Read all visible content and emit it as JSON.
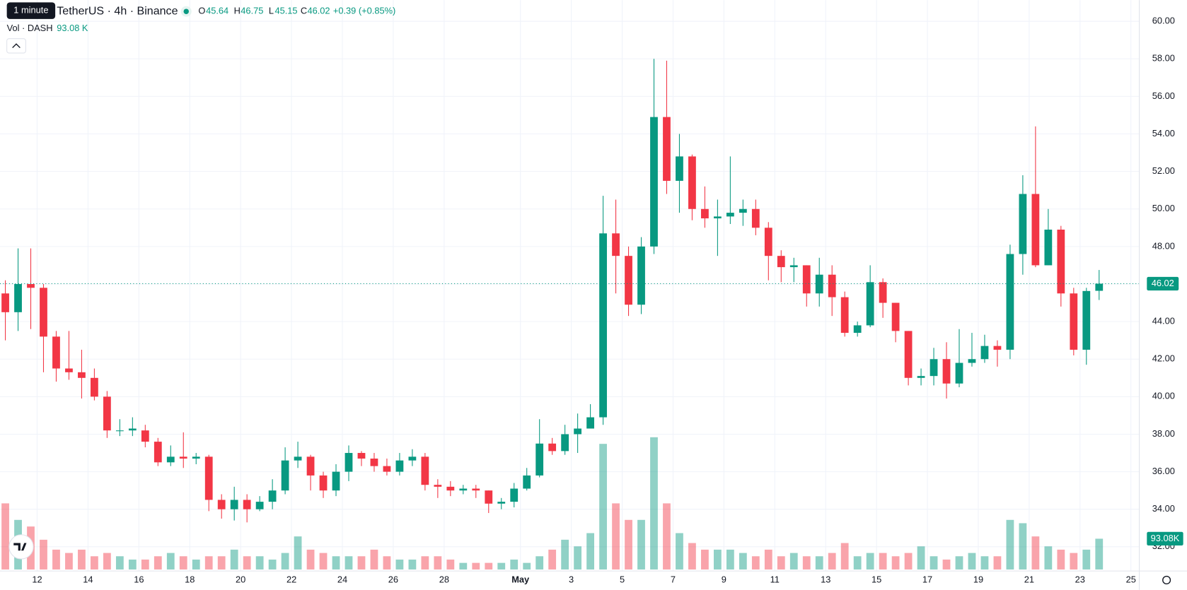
{
  "chart_data": {
    "type": "candlestick",
    "title": "TetherUS · 4h · Binance",
    "tooltip": "1 minute",
    "ohlc_labels": [
      "O",
      "H",
      "L",
      "C"
    ],
    "change": "+0.39 (+0.85%)",
    "volume_title": "Vol · DASH",
    "volume_header": "93.08 K",
    "x": [
      10.75,
      11.25,
      11.75,
      12.25,
      12.75,
      13.25,
      13.75,
      14.25,
      14.75,
      15.25,
      15.75,
      16.25,
      16.75,
      17.25,
      17.75,
      18.25,
      18.75,
      19.25,
      19.75,
      20.25,
      20.75,
      21.25,
      21.75,
      22.25,
      22.75,
      23.25,
      23.75,
      24.25,
      24.75,
      25.25,
      25.75,
      26.25,
      26.75,
      27.25,
      27.75,
      28.25,
      28.75,
      29.25,
      29.75,
      30.25,
      30.75,
      31.25,
      31.75,
      32.25,
      32.75,
      33.25,
      33.75,
      34.25,
      34.75,
      35.25,
      35.75,
      36.25,
      36.75,
      37.25,
      37.75,
      38.25,
      38.75,
      39.25,
      39.75,
      40.25,
      40.75,
      41.25,
      41.75,
      42.25,
      42.75,
      43.25,
      43.75,
      44.25,
      44.75,
      45.25,
      45.75,
      46.25,
      46.75,
      47.25,
      47.75,
      48.25,
      48.75,
      49.25,
      49.75,
      50.25,
      50.75,
      51.25,
      51.75,
      52.25,
      52.75,
      53.25,
      53.75
    ],
    "open": [
      45.5,
      44.5,
      46.0,
      45.8,
      43.2,
      41.5,
      41.3,
      41.0,
      40.0,
      38.2,
      38.2,
      38.2,
      37.6,
      36.5,
      36.8,
      36.7,
      36.8,
      34.5,
      34.0,
      34.5,
      34.0,
      34.4,
      35.0,
      36.6,
      36.8,
      35.8,
      35.0,
      36.0,
      37.0,
      36.7,
      36.3,
      36.0,
      36.6,
      36.8,
      35.3,
      35.2,
      35.0,
      35.1,
      35.0,
      34.3,
      34.4,
      35.1,
      35.8,
      37.5,
      37.1,
      38.0,
      38.3,
      38.9,
      48.7,
      47.5,
      44.9,
      48.0,
      54.9,
      51.5,
      52.8,
      50.0,
      49.5,
      49.6,
      49.8,
      50.0,
      49.0,
      47.5,
      46.9,
      47.0,
      45.5,
      46.5,
      45.3,
      43.4,
      43.8,
      46.1,
      45.0,
      43.5,
      41.0,
      41.1,
      42.0,
      40.7,
      41.8,
      42.0,
      42.7,
      42.5,
      47.6,
      50.8,
      47.0,
      48.9,
      45.5,
      42.5,
      45.64
    ],
    "high": [
      46.2,
      47.9,
      47.9,
      46.0,
      43.5,
      43.5,
      42.5,
      41.5,
      40.3,
      38.8,
      38.9,
      38.5,
      37.8,
      37.4,
      38.1,
      37.0,
      36.9,
      34.8,
      35.2,
      34.8,
      34.7,
      35.6,
      37.3,
      37.6,
      36.9,
      36.0,
      36.4,
      37.4,
      37.1,
      37.0,
      36.7,
      37.0,
      37.2,
      37.0,
      35.6,
      35.5,
      35.3,
      35.3,
      35.0,
      34.6,
      35.4,
      36.2,
      38.8,
      37.8,
      38.5,
      39.1,
      39.6,
      50.7,
      50.5,
      48.0,
      48.5,
      58.0,
      57.9,
      54.0,
      52.9,
      51.2,
      50.5,
      52.8,
      50.5,
      50.5,
      49.3,
      47.8,
      47.4,
      47.0,
      47.4,
      47.0,
      45.6,
      44.0,
      47.0,
      46.3,
      45.0,
      43.5,
      41.5,
      42.6,
      42.9,
      43.6,
      43.4,
      43.3,
      43.0,
      48.1,
      51.8,
      54.4,
      50.0,
      49.1,
      45.8,
      45.8,
      46.75
    ],
    "low": [
      43.0,
      43.5,
      43.6,
      41.3,
      40.8,
      40.9,
      39.9,
      39.8,
      37.8,
      37.9,
      37.9,
      37.3,
      36.3,
      36.3,
      36.2,
      36.4,
      33.9,
      33.5,
      33.4,
      33.3,
      33.9,
      34.0,
      34.8,
      36.2,
      35.0,
      34.6,
      34.7,
      35.5,
      36.3,
      36.0,
      35.8,
      35.8,
      36.3,
      35.0,
      34.6,
      34.7,
      34.8,
      34.6,
      33.8,
      34.0,
      34.1,
      35.0,
      35.7,
      36.9,
      36.9,
      37.0,
      38.3,
      38.5,
      45.5,
      44.3,
      44.4,
      47.6,
      50.8,
      49.8,
      49.4,
      49.0,
      47.5,
      49.2,
      49.1,
      48.6,
      46.2,
      46.1,
      46.1,
      44.8,
      44.8,
      44.3,
      43.2,
      43.2,
      43.7,
      44.2,
      42.9,
      40.6,
      40.6,
      40.6,
      39.9,
      40.5,
      41.6,
      41.8,
      41.6,
      42.0,
      46.5,
      46.9,
      47.0,
      44.8,
      42.2,
      41.7,
      45.15
    ],
    "close": [
      44.5,
      46.0,
      45.8,
      43.2,
      41.5,
      41.3,
      41.0,
      40.0,
      38.2,
      38.2,
      38.3,
      37.6,
      36.5,
      36.8,
      36.7,
      36.8,
      34.5,
      34.0,
      34.5,
      34.0,
      34.4,
      35.0,
      36.6,
      36.8,
      35.8,
      35.0,
      36.0,
      37.0,
      36.7,
      36.3,
      36.0,
      36.6,
      36.8,
      35.3,
      35.2,
      35.0,
      35.1,
      35.0,
      34.3,
      34.4,
      35.1,
      35.8,
      37.5,
      37.1,
      38.0,
      38.3,
      38.9,
      48.7,
      47.5,
      44.9,
      48.0,
      54.9,
      51.5,
      52.8,
      50.0,
      49.5,
      49.6,
      49.8,
      50.0,
      49.0,
      47.5,
      46.9,
      47.0,
      45.5,
      46.5,
      45.3,
      43.4,
      43.8,
      46.1,
      45.0,
      43.5,
      41.0,
      41.1,
      42.0,
      40.7,
      41.8,
      42.0,
      42.7,
      42.5,
      47.6,
      50.8,
      47.0,
      48.9,
      45.5,
      42.5,
      45.63,
      46.02
    ],
    "volume": [
      200000,
      150000,
      130000,
      90000,
      60000,
      50000,
      60000,
      40000,
      50000,
      40000,
      30000,
      30000,
      40000,
      50000,
      40000,
      30000,
      40000,
      40000,
      60000,
      40000,
      40000,
      30000,
      50000,
      100000,
      60000,
      50000,
      40000,
      40000,
      40000,
      60000,
      40000,
      30000,
      30000,
      40000,
      40000,
      30000,
      20000,
      20000,
      20000,
      20000,
      30000,
      20000,
      40000,
      60000,
      90000,
      70000,
      110000,
      380000,
      200000,
      150000,
      150000,
      400000,
      200000,
      110000,
      80000,
      60000,
      60000,
      60000,
      50000,
      40000,
      60000,
      40000,
      50000,
      40000,
      40000,
      50000,
      80000,
      40000,
      50000,
      50000,
      40000,
      50000,
      70000,
      40000,
      30000,
      40000,
      50000,
      40000,
      40000,
      150000,
      140000,
      100000,
      70000,
      60000,
      50000,
      60000,
      93080
    ],
    "volume_last_label": "93.08K",
    "volume_lim": [
      0,
      430000
    ],
    "up_color": "#089981",
    "down_color": "#f23645",
    "xlim": [
      10.54,
      55.33
    ],
    "ylim": [
      30.71,
      61.13
    ],
    "xticks": [
      12,
      14,
      16,
      18,
      20,
      22,
      24,
      26,
      28,
      {
        "value": 31,
        "label": "May"
      },
      {
        "value": 33,
        "label": "3"
      },
      {
        "value": 35,
        "label": "5"
      },
      {
        "value": 37,
        "label": "7"
      },
      {
        "value": 39,
        "label": "9"
      },
      {
        "value": 41,
        "label": "11"
      },
      {
        "value": 43,
        "label": "13"
      },
      {
        "value": 45,
        "label": "15"
      },
      {
        "value": 47,
        "label": "17"
      },
      {
        "value": 49,
        "label": "19"
      },
      {
        "value": 51,
        "label": "21"
      },
      {
        "value": 53,
        "label": "23"
      },
      {
        "value": 55,
        "label": "25"
      }
    ],
    "yticks": [
      {
        "value": 32,
        "label": "32.00"
      },
      {
        "value": 34,
        "label": "34.00"
      },
      {
        "value": 36,
        "label": "36.00"
      },
      {
        "value": 38,
        "label": "38.00"
      },
      {
        "value": 40,
        "label": "40.00"
      },
      {
        "value": 42,
        "label": "42.00"
      },
      {
        "value": 44,
        "label": "44.00"
      },
      {
        "value": 46,
        "label": "46.00"
      },
      {
        "value": 48,
        "label": "48.00"
      },
      {
        "value": 50,
        "label": "50.00"
      },
      {
        "value": 52,
        "label": "52.00"
      },
      {
        "value": 54,
        "label": "54.00"
      },
      {
        "value": 56,
        "label": "56.00"
      },
      {
        "value": 58,
        "label": "58.00"
      },
      {
        "value": 60,
        "label": "60.00"
      }
    ],
    "grid": true
  }
}
